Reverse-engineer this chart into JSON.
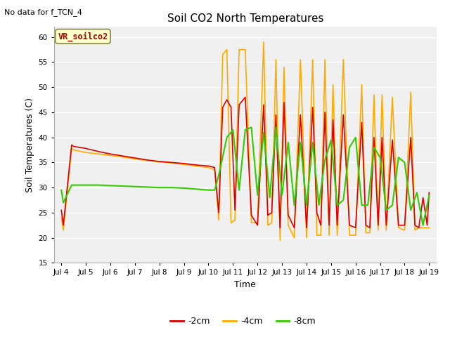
{
  "title": "Soil CO2 North Temperatures",
  "no_data_label": "No data for f_TCN_4",
  "xlabel": "Time",
  "ylabel": "Soil Temperatures (C)",
  "ylim": [
    15,
    62
  ],
  "yticks": [
    15,
    20,
    25,
    30,
    35,
    40,
    45,
    50,
    55,
    60
  ],
  "xlim_days": [
    3.7,
    19.3
  ],
  "xtick_positions": [
    4,
    5,
    6,
    7,
    8,
    9,
    10,
    11,
    12,
    13,
    14,
    15,
    16,
    17,
    18,
    19
  ],
  "xtick_labels": [
    "Jul 4",
    "Jul 5",
    "Jul 6",
    "Jul 7",
    "Jul 8",
    "Jul 9",
    "Jul 10",
    "Jul 11",
    "Jul 12",
    "Jul 13",
    "Jul 14",
    "Jul 15",
    "Jul 16",
    "Jul 17",
    "Jul 18",
    "Jul 19"
  ],
  "legend_label_box": "VR_soilco2",
  "legend_box_color": "#ffffcc",
  "legend_box_edge_color": "#888844",
  "legend_box_text_color": "#aa0000",
  "fig_bg_color": "#ffffff",
  "plot_bg_color": "#f0f0f0",
  "grid_color": "#e0e0e0",
  "colors": {
    "-2cm": "#dd0000",
    "-4cm": "#ffaa00",
    "-8cm": "#33cc00"
  },
  "series_2cm_x": [
    4.0,
    4.08,
    4.42,
    4.5,
    5.0,
    5.5,
    6.0,
    6.5,
    7.0,
    7.5,
    8.0,
    8.5,
    9.0,
    9.5,
    10.0,
    10.25,
    10.42,
    10.58,
    10.75,
    10.92,
    11.08,
    11.25,
    11.5,
    11.75,
    12.0,
    12.25,
    12.42,
    12.58,
    12.75,
    12.92,
    13.08,
    13.25,
    13.5,
    13.75,
    14.0,
    14.25,
    14.42,
    14.58,
    14.75,
    14.92,
    15.08,
    15.25,
    15.5,
    15.75,
    16.0,
    16.25,
    16.42,
    16.58,
    16.75,
    16.92,
    17.08,
    17.25,
    17.5,
    17.75,
    18.0,
    18.25,
    18.42,
    18.58,
    18.75,
    18.92,
    19.0
  ],
  "series_2cm_y": [
    25.5,
    22.5,
    38.5,
    38.2,
    37.8,
    37.2,
    36.7,
    36.3,
    35.9,
    35.5,
    35.2,
    35.0,
    34.8,
    34.5,
    34.3,
    34.0,
    25.0,
    46.0,
    47.5,
    46.0,
    25.5,
    46.5,
    48.0,
    24.5,
    22.5,
    46.5,
    24.5,
    25.0,
    44.5,
    22.0,
    47.0,
    24.5,
    22.0,
    44.5,
    22.0,
    46.0,
    25.0,
    22.5,
    45.0,
    22.5,
    43.5,
    22.5,
    44.5,
    22.5,
    22.0,
    43.0,
    22.5,
    22.0,
    40.0,
    22.5,
    40.0,
    22.5,
    39.5,
    22.5,
    22.5,
    40.0,
    22.5,
    22.0,
    28.0,
    22.5,
    29.0
  ],
  "series_4cm_x": [
    4.0,
    4.08,
    4.42,
    4.5,
    5.0,
    5.5,
    6.0,
    6.5,
    7.0,
    7.5,
    8.0,
    8.5,
    9.0,
    9.5,
    10.0,
    10.25,
    10.42,
    10.58,
    10.75,
    10.92,
    11.08,
    11.25,
    11.5,
    11.75,
    12.0,
    12.25,
    12.42,
    12.58,
    12.75,
    12.92,
    13.08,
    13.25,
    13.5,
    13.75,
    14.0,
    14.25,
    14.42,
    14.58,
    14.75,
    14.92,
    15.08,
    15.25,
    15.5,
    15.75,
    16.0,
    16.25,
    16.42,
    16.58,
    16.75,
    16.92,
    17.08,
    17.25,
    17.5,
    17.75,
    18.0,
    18.25,
    18.42,
    18.58,
    18.75,
    18.92,
    19.0
  ],
  "series_4cm_y": [
    24.0,
    21.5,
    37.8,
    37.5,
    37.0,
    36.7,
    36.4,
    36.1,
    35.7,
    35.4,
    35.1,
    34.9,
    34.6,
    34.3,
    34.0,
    33.5,
    23.5,
    56.5,
    57.5,
    23.0,
    23.5,
    57.5,
    57.5,
    23.0,
    23.0,
    59.0,
    22.5,
    23.0,
    55.5,
    19.5,
    54.0,
    22.5,
    20.0,
    55.5,
    20.0,
    55.5,
    20.5,
    20.5,
    55.5,
    20.5,
    50.5,
    20.5,
    55.5,
    20.5,
    20.5,
    50.5,
    21.0,
    21.0,
    48.5,
    21.5,
    48.5,
    21.5,
    48.0,
    22.0,
    21.5,
    49.0,
    21.5,
    22.0,
    22.0,
    22.0,
    22.0
  ],
  "series_8cm_x": [
    4.0,
    4.08,
    4.42,
    5.0,
    5.5,
    6.0,
    6.5,
    7.0,
    7.5,
    8.0,
    8.5,
    9.0,
    9.5,
    10.0,
    10.25,
    10.42,
    10.75,
    11.0,
    11.25,
    11.5,
    11.75,
    12.0,
    12.25,
    12.5,
    12.75,
    13.0,
    13.25,
    13.5,
    13.75,
    14.0,
    14.25,
    14.5,
    14.75,
    15.0,
    15.25,
    15.5,
    15.75,
    16.0,
    16.25,
    16.5,
    16.75,
    17.0,
    17.25,
    17.5,
    17.75,
    18.0,
    18.25,
    18.5,
    18.75,
    19.0
  ],
  "series_8cm_y": [
    29.5,
    27.0,
    30.5,
    30.5,
    30.5,
    30.4,
    30.3,
    30.2,
    30.1,
    30.0,
    30.0,
    29.9,
    29.7,
    29.5,
    29.5,
    32.5,
    40.0,
    41.5,
    29.5,
    41.5,
    42.0,
    28.5,
    41.0,
    28.0,
    42.0,
    28.5,
    39.0,
    26.5,
    39.0,
    26.5,
    39.0,
    26.5,
    35.5,
    39.5,
    26.5,
    27.5,
    38.0,
    40.0,
    26.5,
    26.5,
    38.0,
    36.0,
    25.5,
    26.5,
    36.0,
    35.0,
    25.5,
    29.0,
    22.5,
    28.5
  ]
}
